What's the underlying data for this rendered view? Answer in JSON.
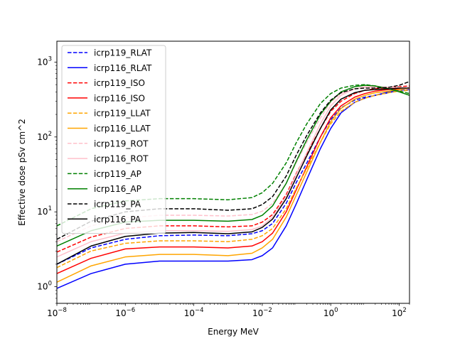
{
  "chart_data": {
    "type": "line",
    "title": "",
    "xlabel": "Energy MeV",
    "ylabel": "Effective dose pSv cm^2",
    "xscale": "log",
    "yscale": "log",
    "xlim": [
      1e-08,
      200
    ],
    "ylim": [
      0.6,
      1900
    ],
    "grid": false,
    "legend_position": "upper-left",
    "x_ticks": [
      {
        "value": 1e-08,
        "label": "10",
        "exp": "−8"
      },
      {
        "value": 1e-06,
        "label": "10",
        "exp": "−6"
      },
      {
        "value": 0.0001,
        "label": "10",
        "exp": "−4"
      },
      {
        "value": 0.01,
        "label": "10",
        "exp": "−2"
      },
      {
        "value": 1,
        "label": "10",
        "exp": "0"
      },
      {
        "value": 100,
        "label": "10",
        "exp": "2"
      }
    ],
    "y_ticks": [
      {
        "value": 1,
        "label": "10",
        "exp": "0"
      },
      {
        "value": 10,
        "label": "10",
        "exp": "1"
      },
      {
        "value": 100,
        "label": "10",
        "exp": "2"
      },
      {
        "value": 1000,
        "label": "10",
        "exp": "3"
      }
    ],
    "series": [
      {
        "name": "icrp119_RLAT",
        "color": "#0000ff",
        "style": "dashed",
        "x": [
          1e-08,
          1e-07,
          1e-06,
          1e-05,
          0.0001,
          0.001,
          0.005,
          0.01,
          0.02,
          0.05,
          0.1,
          0.2,
          0.5,
          1,
          2,
          5,
          10,
          20,
          50,
          100,
          200
        ],
        "y": [
          2.0,
          3.3,
          4.3,
          4.8,
          4.9,
          4.8,
          5.1,
          5.6,
          7.0,
          13,
          25,
          45,
          100,
          170,
          245,
          310,
          340,
          360,
          390,
          420,
          430
        ]
      },
      {
        "name": "icrp116_RLAT",
        "color": "#0000ff",
        "style": "solid",
        "x": [
          1e-08,
          1e-07,
          1e-06,
          1e-05,
          0.0001,
          0.001,
          0.005,
          0.01,
          0.02,
          0.05,
          0.1,
          0.2,
          0.5,
          1,
          2,
          5,
          10,
          20,
          50,
          100,
          200
        ],
        "y": [
          0.95,
          1.5,
          2.0,
          2.2,
          2.2,
          2.2,
          2.3,
          2.6,
          3.3,
          6.5,
          13,
          27,
          70,
          130,
          210,
          290,
          330,
          360,
          400,
          430,
          440
        ]
      },
      {
        "name": "icrp119_ISO",
        "color": "#ff0000",
        "style": "dashed",
        "x": [
          1e-08,
          1e-07,
          1e-06,
          1e-05,
          0.0001,
          0.001,
          0.005,
          0.01,
          0.02,
          0.05,
          0.1,
          0.2,
          0.5,
          1,
          2,
          5,
          10,
          20,
          50,
          100,
          200
        ],
        "y": [
          2.9,
          4.6,
          6.0,
          6.5,
          6.5,
          6.3,
          6.5,
          7.3,
          9.2,
          17,
          33,
          60,
          130,
          220,
          300,
          380,
          420,
          440,
          460,
          470,
          480
        ]
      },
      {
        "name": "icrp116_ISO",
        "color": "#ff0000",
        "style": "solid",
        "x": [
          1e-08,
          1e-07,
          1e-06,
          1e-05,
          0.0001,
          0.001,
          0.005,
          0.01,
          0.02,
          0.05,
          0.1,
          0.2,
          0.5,
          1,
          2,
          5,
          10,
          20,
          50,
          100,
          200
        ],
        "y": [
          1.5,
          2.4,
          3.2,
          3.4,
          3.4,
          3.3,
          3.5,
          4.0,
          5.2,
          10,
          20,
          40,
          100,
          180,
          260,
          340,
          380,
          410,
          430,
          440,
          450
        ]
      },
      {
        "name": "icrp119_LLAT",
        "color": "#ffa500",
        "style": "dashed",
        "x": [
          1e-08,
          1e-07,
          1e-06,
          1e-05,
          0.0001,
          0.001,
          0.005,
          0.01,
          0.02,
          0.05,
          0.1,
          0.2,
          0.5,
          1,
          2,
          5,
          10,
          20,
          50,
          100,
          200
        ],
        "y": [
          1.8,
          3.0,
          3.8,
          4.1,
          4.1,
          4.0,
          4.3,
          4.8,
          6.0,
          11,
          21,
          38,
          85,
          150,
          220,
          290,
          330,
          360,
          390,
          410,
          420
        ]
      },
      {
        "name": "icrp116_LLAT",
        "color": "#ffa500",
        "style": "solid",
        "x": [
          1e-08,
          1e-07,
          1e-06,
          1e-05,
          0.0001,
          0.001,
          0.005,
          0.01,
          0.02,
          0.05,
          0.1,
          0.2,
          0.5,
          1,
          2,
          5,
          10,
          20,
          50,
          100,
          200
        ],
        "y": [
          1.15,
          1.9,
          2.5,
          2.7,
          2.7,
          2.6,
          2.8,
          3.3,
          4.3,
          8.5,
          17,
          34,
          85,
          160,
          240,
          320,
          360,
          390,
          410,
          430,
          440
        ]
      },
      {
        "name": "icrp119_ROT",
        "color": "#ffc0cb",
        "style": "dashed",
        "x": [
          1e-08,
          1e-07,
          1e-06,
          1e-05,
          0.0001,
          0.001,
          0.005,
          0.01,
          0.02,
          0.05,
          0.1,
          0.2,
          0.5,
          1,
          2,
          5,
          10,
          20,
          50,
          100,
          200
        ],
        "y": [
          4.0,
          6.5,
          8.3,
          9.0,
          9.0,
          8.8,
          9.2,
          10.2,
          13,
          24,
          46,
          85,
          180,
          290,
          380,
          440,
          460,
          460,
          460,
          460,
          460
        ]
      },
      {
        "name": "icrp116_ROT",
        "color": "#ffc0cb",
        "style": "solid",
        "x": [
          1e-08,
          1e-07,
          1e-06,
          1e-05,
          0.0001,
          0.001,
          0.005,
          0.01,
          0.02,
          0.05,
          0.1,
          0.2,
          0.5,
          1,
          2,
          5,
          10,
          20,
          50,
          100,
          200
        ],
        "y": [
          2.5,
          4.0,
          5.2,
          5.6,
          5.6,
          5.5,
          5.8,
          6.5,
          8.5,
          16,
          32,
          62,
          150,
          260,
          360,
          440,
          470,
          470,
          460,
          450,
          440
        ]
      },
      {
        "name": "icrp119_AP",
        "color": "#008000",
        "style": "dashed",
        "x": [
          1e-08,
          1e-07,
          1e-06,
          1e-05,
          0.0001,
          0.001,
          0.005,
          0.01,
          0.02,
          0.05,
          0.1,
          0.2,
          0.5,
          1,
          2,
          5,
          10,
          20,
          50,
          100,
          200
        ],
        "y": [
          6.5,
          11,
          14,
          15,
          15,
          14.5,
          15.5,
          18,
          24,
          45,
          85,
          150,
          280,
          380,
          450,
          490,
          500,
          480,
          440,
          410,
          380
        ]
      },
      {
        "name": "icrp116_AP",
        "color": "#008000",
        "style": "solid",
        "x": [
          1e-08,
          1e-07,
          1e-06,
          1e-05,
          0.0001,
          0.001,
          0.005,
          0.01,
          0.02,
          0.05,
          0.1,
          0.2,
          0.5,
          1,
          2,
          5,
          10,
          20,
          50,
          100,
          200
        ],
        "y": [
          3.5,
          5.6,
          7.3,
          7.7,
          7.7,
          7.5,
          7.9,
          9.0,
          12,
          24,
          48,
          92,
          200,
          300,
          400,
          470,
          490,
          480,
          440,
          400,
          360
        ]
      },
      {
        "name": "icrp119_PA",
        "color": "#000000",
        "style": "dashed",
        "x": [
          1e-08,
          1e-07,
          1e-06,
          1e-05,
          0.0001,
          0.001,
          0.005,
          0.01,
          0.02,
          0.05,
          0.1,
          0.2,
          0.5,
          1,
          2,
          5,
          10,
          20,
          50,
          100,
          200
        ],
        "y": [
          4.3,
          7.5,
          10,
          11,
          11,
          10.5,
          11,
          12.5,
          16,
          30,
          58,
          105,
          210,
          310,
          390,
          440,
          450,
          450,
          460,
          490,
          550
        ]
      },
      {
        "name": "icrp116_PA",
        "color": "#000000",
        "style": "solid",
        "x": [
          1e-08,
          1e-07,
          1e-06,
          1e-05,
          0.0001,
          0.001,
          0.005,
          0.01,
          0.02,
          0.05,
          0.1,
          0.2,
          0.5,
          1,
          2,
          5,
          10,
          20,
          50,
          100,
          200
        ],
        "y": [
          2.0,
          3.5,
          4.7,
          5.2,
          5.3,
          5.1,
          5.4,
          6.2,
          8.0,
          15,
          29,
          56,
          130,
          230,
          320,
          390,
          420,
          430,
          440,
          450,
          450
        ]
      }
    ]
  }
}
